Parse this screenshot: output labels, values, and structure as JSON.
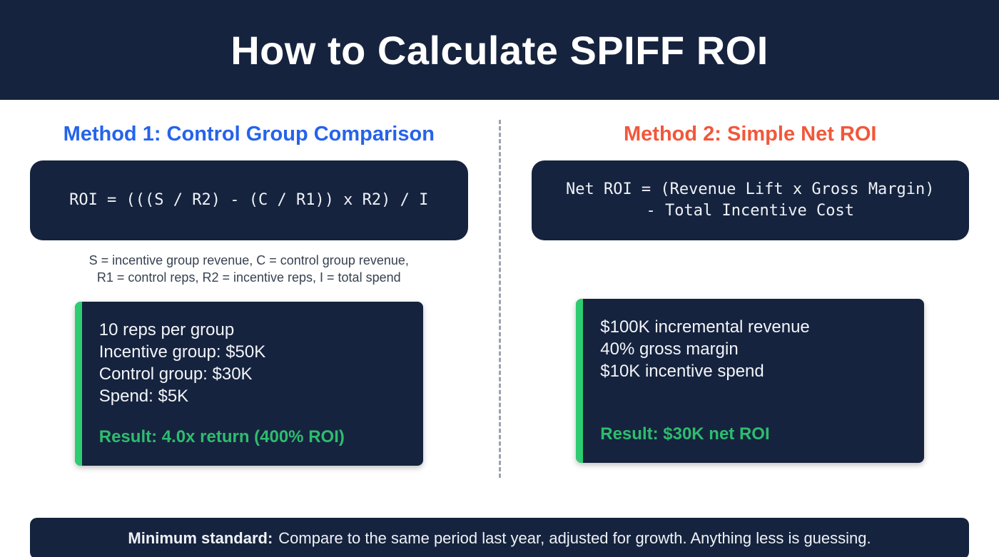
{
  "header": {
    "title": "How to Calculate SPIFF ROI"
  },
  "colors": {
    "navy": "#16233e",
    "blue": "#2563eb",
    "orange": "#f2573a",
    "green": "#2ecc71",
    "result_green": "#2dbd6e"
  },
  "method1": {
    "heading": "Method 1: Control Group Comparison",
    "formula": "ROI = (((S / R2) - (C / R1)) x R2) / I",
    "caption_line1": "S = incentive group revenue, C = control group revenue,",
    "caption_line2": "R1 = control reps, R2 = incentive reps, I = total spend",
    "example_lines": [
      "10 reps per group",
      "Incentive group: $50K",
      "Control group: $30K",
      "Spend: $5K"
    ],
    "result": "Result: 4.0x return (400% ROI)"
  },
  "method2": {
    "heading": "Method 2: Simple Net ROI",
    "formula_line1": "Net ROI = (Revenue Lift x Gross Margin)",
    "formula_line2": "- Total Incentive Cost",
    "example_lines": [
      "$100K incremental revenue",
      "40% gross margin",
      "$10K incentive spend"
    ],
    "result": "Result: $30K net ROI"
  },
  "footer": {
    "label": "Minimum standard:",
    "rest": "Compare to the same period last year, adjusted for growth. Anything less is guessing."
  }
}
